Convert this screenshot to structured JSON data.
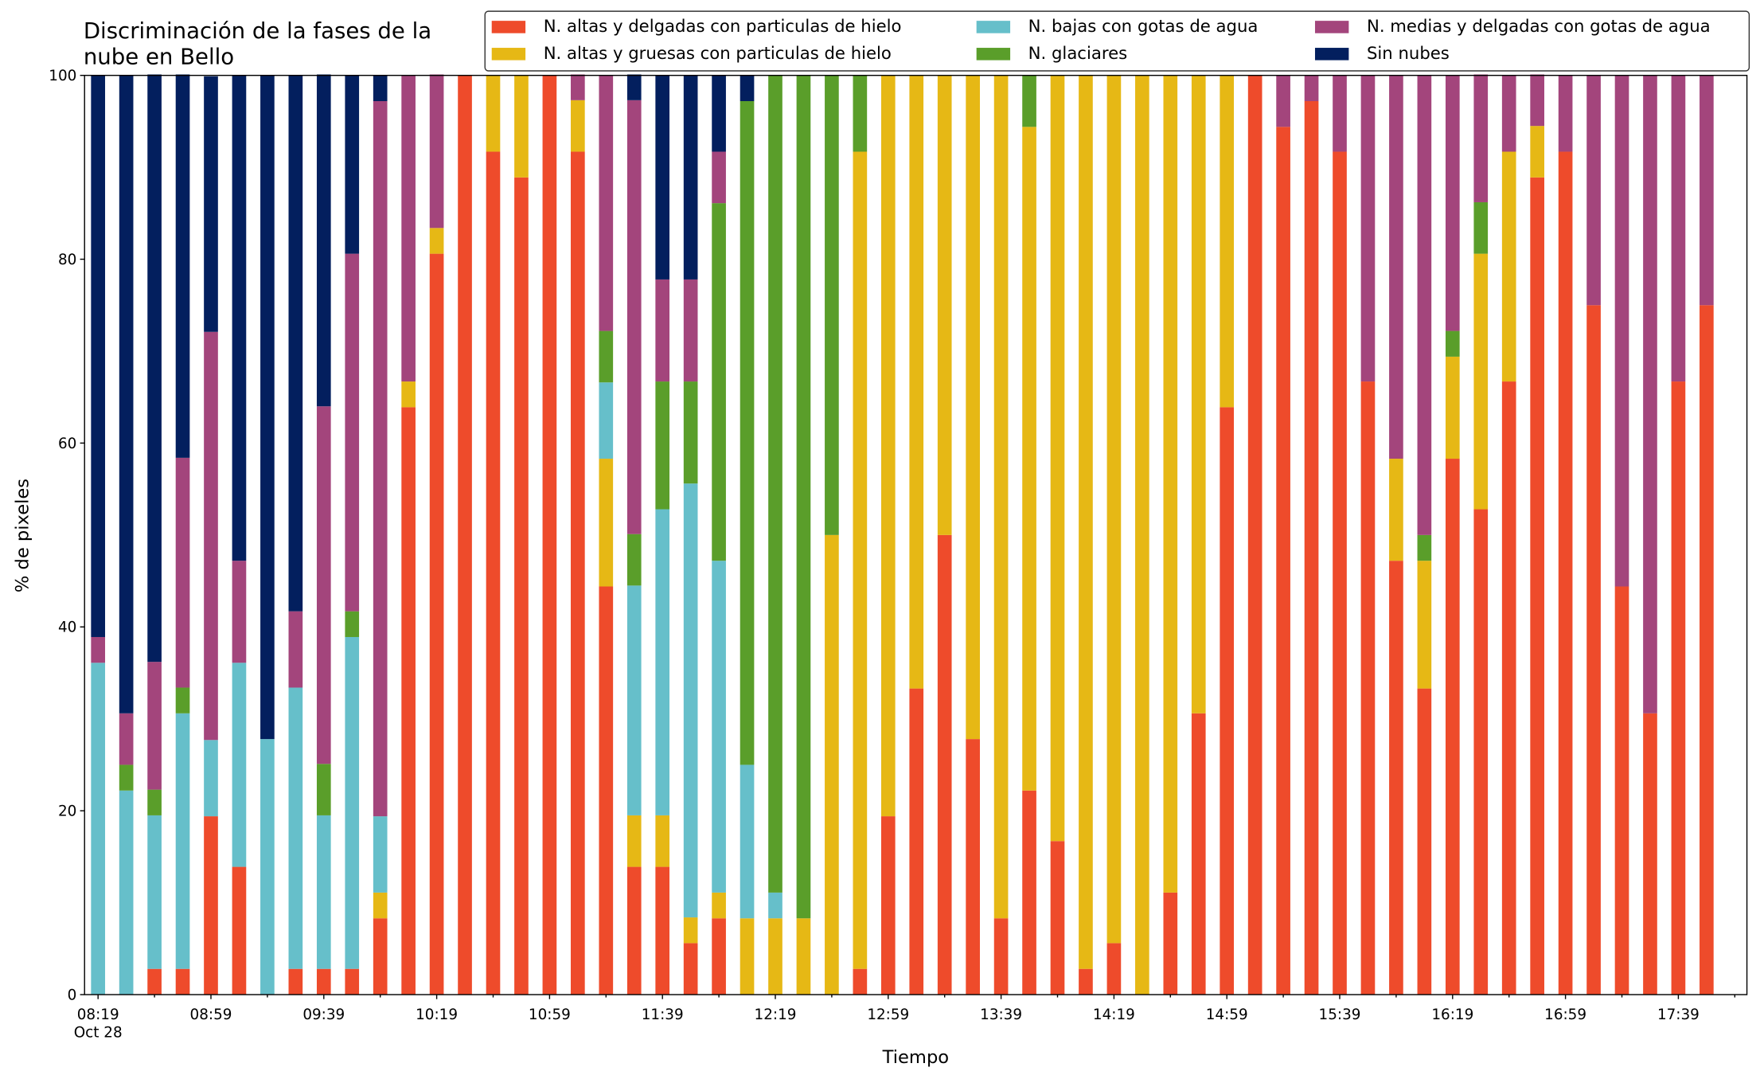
{
  "chart_data": {
    "type": "stacked_bar",
    "title": "Discriminación de la fases de la\nnube en Bello",
    "x_label": "Tiempo",
    "y_label": "% de pixeles",
    "x_date_label": "Oct 28",
    "categories": [
      "08:19",
      null,
      null,
      null,
      "08:59",
      null,
      null,
      null,
      "09:39",
      null,
      null,
      null,
      "10:19",
      null,
      null,
      null,
      "10:59",
      null,
      null,
      null,
      "11:39",
      null,
      null,
      null,
      "12:19",
      null,
      null,
      null,
      "12:59",
      null,
      null,
      null,
      "13:39",
      null,
      null,
      null,
      "14:19",
      null,
      null,
      null,
      "14:59",
      null,
      null,
      null,
      "15:39",
      null,
      null,
      null,
      "16:19",
      null,
      null,
      null,
      "16:59",
      null,
      null,
      null,
      "17:39",
      null
    ],
    "ylim": [
      0,
      100
    ],
    "yticks": [
      0,
      20,
      40,
      60,
      80,
      100
    ],
    "legend": "top-right",
    "series": [
      {
        "name": "N. altas y delgadas con particulas de hielo",
        "color": "#ee4b2b",
        "values": [
          0,
          0,
          2.8,
          2.8,
          19.4,
          13.9,
          0,
          2.8,
          2.8,
          2.8,
          8.3,
          63.9,
          80.6,
          100,
          91.7,
          88.9,
          100,
          91.7,
          44.4,
          13.9,
          13.9,
          5.6,
          8.3,
          0,
          0,
          0,
          0,
          2.8,
          19.4,
          33.3,
          50,
          27.8,
          8.3,
          22.2,
          16.7,
          2.8,
          5.6,
          0,
          11.1,
          30.6,
          63.9,
          100,
          94.4,
          97.2,
          91.7,
          66.7,
          47.2,
          33.3,
          58.3,
          52.8,
          66.7,
          88.9,
          91.7,
          75,
          44.4,
          30.6,
          66.7,
          75
        ]
      },
      {
        "name": "N. altas y gruesas con particulas de hielo",
        "color": "#e6b815",
        "values": [
          0,
          0,
          0,
          0,
          0,
          0,
          0,
          0,
          0,
          0,
          2.8,
          2.8,
          2.8,
          0,
          8.3,
          11.1,
          0,
          5.6,
          13.9,
          5.6,
          5.6,
          2.8,
          2.8,
          8.3,
          8.3,
          8.3,
          50,
          88.9,
          80.6,
          66.7,
          50,
          72.2,
          91.7,
          72.2,
          83.3,
          97.2,
          94.4,
          100,
          88.9,
          69.4,
          36.1,
          0,
          0,
          0,
          0,
          0,
          11.1,
          13.9,
          11.1,
          27.8,
          25,
          5.6,
          0,
          0,
          0,
          0,
          0,
          0
        ]
      },
      {
        "name": "N. bajas con gotas de agua",
        "color": "#66bfca",
        "values": [
          36.1,
          22.2,
          16.7,
          27.8,
          8.3,
          22.2,
          27.8,
          30.6,
          16.7,
          36.1,
          8.3,
          0,
          0,
          0,
          0,
          0,
          0,
          0,
          8.3,
          25,
          33.3,
          47.2,
          36.1,
          16.7,
          2.8,
          0,
          0,
          0,
          0,
          0,
          0,
          0,
          0,
          0,
          0,
          0,
          0,
          0,
          0,
          0,
          0,
          0,
          0,
          0,
          0,
          0,
          0,
          0,
          0,
          0,
          0,
          0,
          0,
          0,
          0,
          0,
          0,
          0
        ]
      },
      {
        "name": "N. glaciares",
        "color": "#5a9e2a",
        "values": [
          0,
          2.8,
          2.8,
          2.8,
          0,
          0,
          0,
          0,
          5.6,
          2.8,
          0,
          0,
          0,
          0,
          0,
          0,
          0,
          0,
          5.6,
          5.6,
          13.9,
          11.1,
          38.9,
          72.2,
          88.9,
          91.7,
          50,
          8.3,
          0,
          0,
          0,
          0,
          0,
          5.6,
          0,
          0,
          0,
          0,
          0,
          0,
          0,
          0,
          0,
          0,
          0,
          0,
          0,
          2.8,
          2.8,
          5.6,
          0,
          0,
          0,
          0,
          0,
          0,
          0,
          0
        ]
      },
      {
        "name": "N. medias y delgadas con gotas de agua",
        "color": "#a3457c",
        "values": [
          2.8,
          5.6,
          13.9,
          25,
          44.4,
          11.1,
          0,
          8.3,
          38.9,
          38.9,
          77.8,
          33.3,
          16.7,
          0,
          0,
          0,
          0,
          2.8,
          27.8,
          47.2,
          11.1,
          11.1,
          5.6,
          0,
          0,
          0,
          0,
          0,
          0,
          0,
          0,
          0,
          0,
          0,
          0,
          0,
          0,
          0,
          0,
          0,
          0,
          0,
          5.6,
          2.8,
          8.3,
          33.3,
          41.7,
          50,
          27.8,
          13.9,
          8.3,
          5.6,
          8.3,
          25,
          55.6,
          69.4,
          33.3,
          25
        ]
      },
      {
        "name": "Sin nubes",
        "color": "#031f5e",
        "values": [
          61.1,
          69.4,
          63.9,
          41.7,
          27.8,
          52.8,
          72.2,
          58.3,
          36.1,
          19.4,
          2.8,
          0,
          0,
          0,
          0,
          0,
          0,
          0,
          0,
          2.8,
          22.2,
          22.2,
          8.3,
          2.8,
          0,
          0,
          0,
          0,
          0,
          0,
          0,
          0,
          0,
          0,
          0,
          0,
          0,
          0,
          0,
          0,
          0,
          0,
          0,
          0,
          0,
          0,
          0,
          0,
          0,
          0,
          0,
          0,
          0,
          0,
          0,
          0,
          0,
          0
        ]
      }
    ]
  }
}
